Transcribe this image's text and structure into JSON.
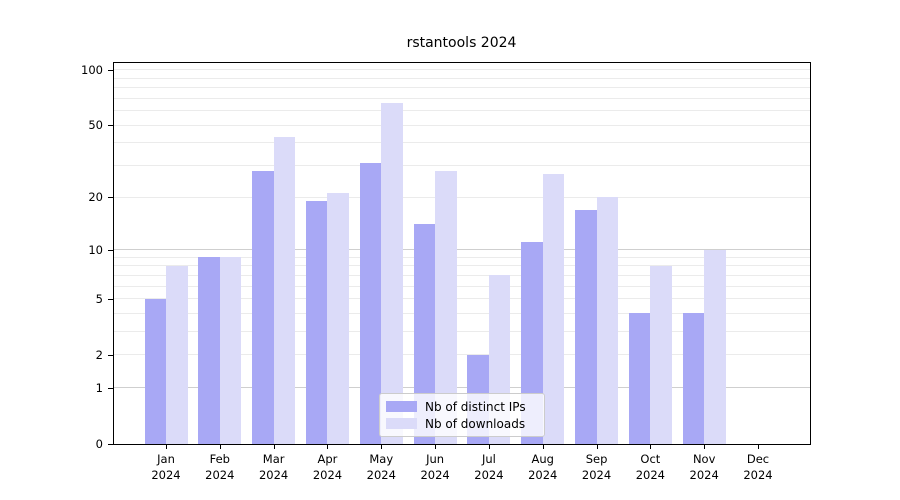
{
  "chart_data": {
    "type": "bar",
    "title": "rstantools 2024",
    "categories": [
      "Jan",
      "Feb",
      "Mar",
      "Apr",
      "May",
      "Jun",
      "Jul",
      "Aug",
      "Sep",
      "Oct",
      "Nov",
      "Dec"
    ],
    "x_year_label": "2024",
    "series": [
      {
        "name": "Nb of distinct IPs",
        "color": "#a8a8f5",
        "values": [
          5,
          9,
          28,
          19,
          31,
          14,
          2,
          11,
          17,
          4,
          4,
          0
        ]
      },
      {
        "name": "Nb of downloads",
        "color": "#dbdbf9",
        "values": [
          8,
          9,
          43,
          21,
          66,
          28,
          7,
          27,
          20,
          8,
          10,
          0
        ]
      }
    ],
    "yscale": "log1p",
    "yticks": [
      0,
      1,
      2,
      5,
      10,
      20,
      50,
      100
    ],
    "ytick_labels": [
      "0",
      "1",
      "2",
      "5",
      "10",
      "20",
      "50",
      "100"
    ],
    "ylim": [
      0,
      110
    ],
    "grid": true,
    "grid_minor_values": [
      2,
      3,
      4,
      5,
      6,
      7,
      8,
      9,
      20,
      30,
      40,
      50,
      60,
      70,
      80,
      90,
      100
    ],
    "grid_major_values": [
      1,
      10
    ],
    "legend_position": "lower-center"
  }
}
